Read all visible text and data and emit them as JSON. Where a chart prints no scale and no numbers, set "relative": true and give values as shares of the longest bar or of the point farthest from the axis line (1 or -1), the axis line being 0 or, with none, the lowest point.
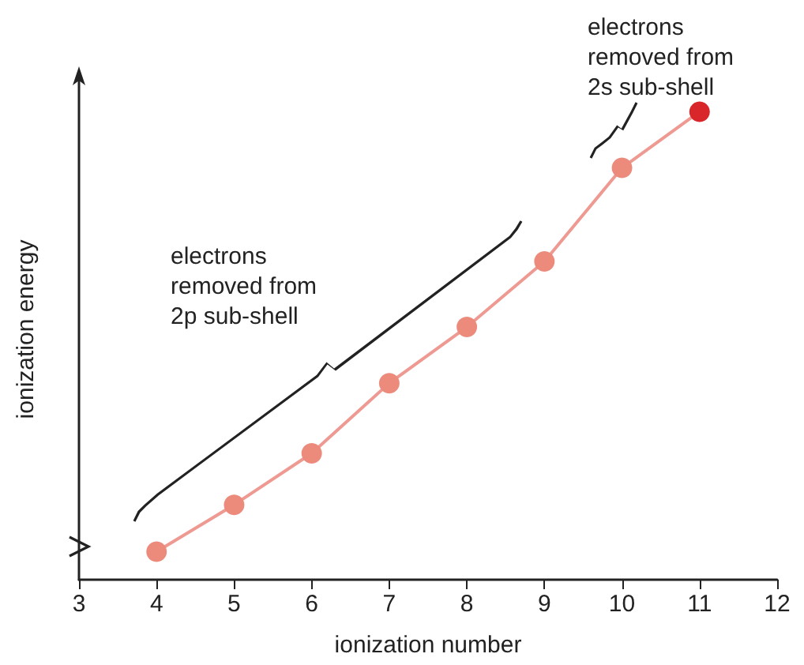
{
  "chart_data": {
    "type": "line",
    "relative": true,
    "xlabel": "ionization number",
    "ylabel": "ionization energy",
    "x": [
      4,
      5,
      6,
      7,
      8,
      9,
      10,
      11
    ],
    "series": [
      {
        "color": "#ee9a92",
        "colors": [
          "#ec8a7c",
          "#ec8a7c",
          "#ec8a7c",
          "#ec8a7c",
          "#ec8a7c",
          "#ec8a7c",
          "#ec8a7c",
          "#d9262b"
        ],
        "values": [
          0.06,
          0.16,
          0.27,
          0.42,
          0.54,
          0.68,
          0.88,
          1
        ]
      }
    ],
    "xlim": [
      3,
      12
    ],
    "xticks": [
      3,
      4,
      5,
      6,
      7,
      8,
      9,
      10,
      11,
      12
    ],
    "marker": "circle",
    "grid": false,
    "annotations": [
      "electrons\nremoved from\n2p sub-shell",
      "electrons\nremoved from\n2s sub-shell"
    ]
  }
}
